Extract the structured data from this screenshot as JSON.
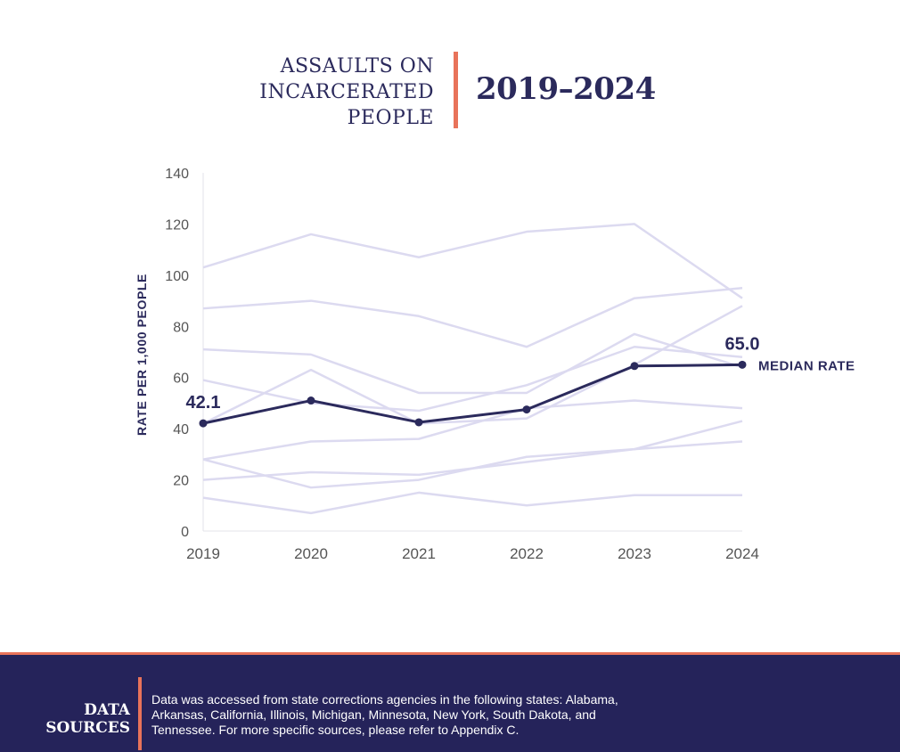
{
  "header": {
    "title": "ASSAULTS ON INCARCERATED PEOPLE",
    "years": "2019–2024"
  },
  "chart_data": {
    "type": "line",
    "x": [
      "2019",
      "2020",
      "2021",
      "2022",
      "2023",
      "2024"
    ],
    "ylabel": "RATE PER 1,000 PEOPLE",
    "ylim": [
      0,
      140
    ],
    "yticks": [
      0,
      20,
      40,
      60,
      80,
      100,
      120,
      140
    ],
    "series": [
      {
        "name": "MEDIAN RATE",
        "values": [
          42.1,
          51,
          42.5,
          47.5,
          64.5,
          65.0
        ],
        "highlight": true
      },
      {
        "values": [
          103,
          116,
          107,
          117,
          120,
          91
        ]
      },
      {
        "values": [
          87,
          90,
          84,
          72,
          91,
          95
        ]
      },
      {
        "values": [
          71,
          69,
          54,
          54,
          77,
          64
        ]
      },
      {
        "values": [
          59,
          50,
          47,
          57,
          72,
          68
        ]
      },
      {
        "values": [
          42,
          63,
          42,
          44,
          65,
          88
        ]
      },
      {
        "values": [
          28,
          35,
          36,
          48,
          51,
          48
        ]
      },
      {
        "values": [
          28,
          17,
          20,
          29,
          32,
          43
        ]
      },
      {
        "values": [
          20,
          23,
          22,
          27,
          32,
          35
        ]
      },
      {
        "values": [
          13,
          7,
          15,
          10,
          14,
          14
        ]
      }
    ],
    "annotations": [
      {
        "text": "42.1",
        "x": "2019"
      },
      {
        "text": "65.0",
        "x": "2024"
      }
    ],
    "colors": {
      "median": "#2b2a5c",
      "other": "#dcdaf0",
      "axis_text": "#555555"
    }
  },
  "footer": {
    "label": "DATA SOURCES",
    "text": "Data was accessed from state corrections agencies in the following states: Alabama, Arkansas, California, Illinois, Michigan, Minnesota, New York, South Dakota, and Tennessee. For more specific sources, please refer to Appendix C."
  }
}
